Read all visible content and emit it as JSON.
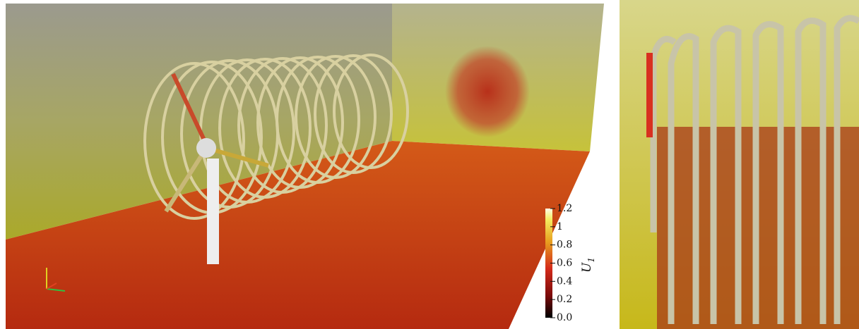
{
  "colorbar": {
    "title": "U",
    "title_subscript": "1",
    "range": [
      0,
      1.2
    ],
    "ticks": [
      {
        "value": 0,
        "label": "0.0"
      },
      0.2,
      0.4,
      0.6,
      0.8,
      1,
      1.2
    ]
  }
}
